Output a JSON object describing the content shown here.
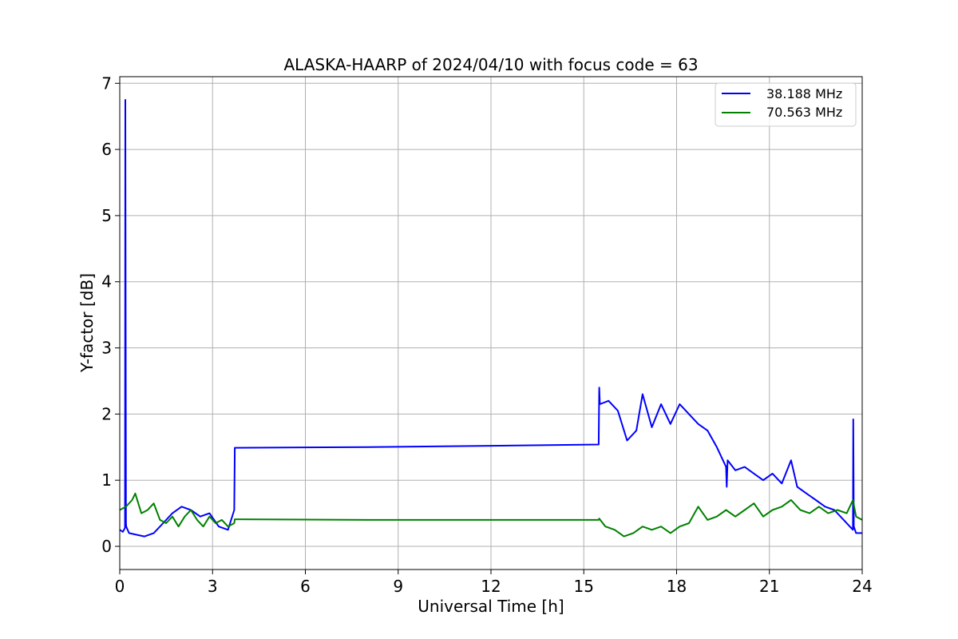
{
  "chart_data": {
    "type": "line",
    "title": "ALASKA-HAARP of 2024/04/10 with focus code = 63",
    "xlabel": "Universal Time [h]",
    "ylabel": "Y-factor [dB]",
    "xlim": [
      0,
      24
    ],
    "ylim": [
      -0.35,
      7.1
    ],
    "xticks": [
      0,
      3,
      6,
      9,
      12,
      15,
      18,
      21,
      24
    ],
    "yticks": [
      0,
      1,
      2,
      3,
      4,
      5,
      6,
      7
    ],
    "grid": true,
    "legend_position": "top-right",
    "series": [
      {
        "name": "38.188 MHz",
        "color": "#0000ff",
        "x": [
          0.0,
          0.1,
          0.17,
          0.18,
          0.2,
          0.21,
          0.3,
          0.5,
          0.8,
          1.1,
          1.4,
          1.7,
          2.0,
          2.3,
          2.6,
          2.9,
          3.2,
          3.5,
          3.7,
          3.72,
          3.75,
          8.0,
          12.0,
          15.48,
          15.5,
          15.52,
          15.8,
          16.1,
          16.4,
          16.7,
          16.9,
          17.2,
          17.5,
          17.8,
          18.1,
          18.4,
          18.7,
          19.0,
          19.3,
          19.6,
          19.62,
          19.65,
          19.9,
          20.2,
          20.5,
          20.8,
          21.1,
          21.4,
          21.7,
          21.9,
          22.2,
          22.5,
          22.8,
          23.1,
          23.4,
          23.6,
          23.7,
          23.71,
          23.73,
          23.8,
          24.0
        ],
        "y": [
          0.25,
          0.22,
          0.28,
          6.75,
          0.35,
          0.3,
          0.2,
          0.18,
          0.15,
          0.2,
          0.35,
          0.5,
          0.6,
          0.55,
          0.45,
          0.5,
          0.3,
          0.25,
          0.55,
          1.49,
          1.49,
          1.5,
          1.52,
          1.54,
          2.4,
          2.15,
          2.2,
          2.05,
          1.6,
          1.75,
          2.3,
          1.8,
          2.15,
          1.85,
          2.15,
          2.0,
          1.85,
          1.75,
          1.5,
          1.2,
          0.9,
          1.3,
          1.15,
          1.2,
          1.1,
          1.0,
          1.1,
          0.95,
          1.3,
          0.9,
          0.8,
          0.7,
          0.6,
          0.55,
          0.4,
          0.3,
          0.25,
          1.92,
          0.3,
          0.2,
          0.2
        ]
      },
      {
        "name": "70.563 MHz",
        "color": "#008000",
        "x": [
          0.0,
          0.2,
          0.4,
          0.5,
          0.7,
          0.9,
          1.1,
          1.3,
          1.5,
          1.7,
          1.9,
          2.1,
          2.3,
          2.5,
          2.7,
          2.9,
          3.1,
          3.3,
          3.5,
          3.7,
          3.72,
          3.75,
          8.0,
          12.0,
          15.48,
          15.5,
          15.7,
          16.0,
          16.3,
          16.6,
          16.9,
          17.2,
          17.5,
          17.8,
          18.1,
          18.4,
          18.7,
          19.0,
          19.3,
          19.6,
          19.9,
          20.2,
          20.5,
          20.8,
          21.1,
          21.4,
          21.7,
          22.0,
          22.3,
          22.6,
          22.9,
          23.2,
          23.5,
          23.7,
          23.8,
          24.0
        ],
        "y": [
          0.55,
          0.6,
          0.7,
          0.8,
          0.5,
          0.55,
          0.65,
          0.4,
          0.35,
          0.45,
          0.3,
          0.45,
          0.55,
          0.4,
          0.3,
          0.45,
          0.35,
          0.4,
          0.3,
          0.35,
          0.41,
          0.41,
          0.4,
          0.4,
          0.4,
          0.42,
          0.3,
          0.25,
          0.15,
          0.2,
          0.3,
          0.25,
          0.3,
          0.2,
          0.3,
          0.35,
          0.6,
          0.4,
          0.45,
          0.55,
          0.45,
          0.55,
          0.65,
          0.45,
          0.55,
          0.6,
          0.7,
          0.55,
          0.5,
          0.6,
          0.5,
          0.55,
          0.5,
          0.7,
          0.45,
          0.4
        ]
      }
    ]
  }
}
